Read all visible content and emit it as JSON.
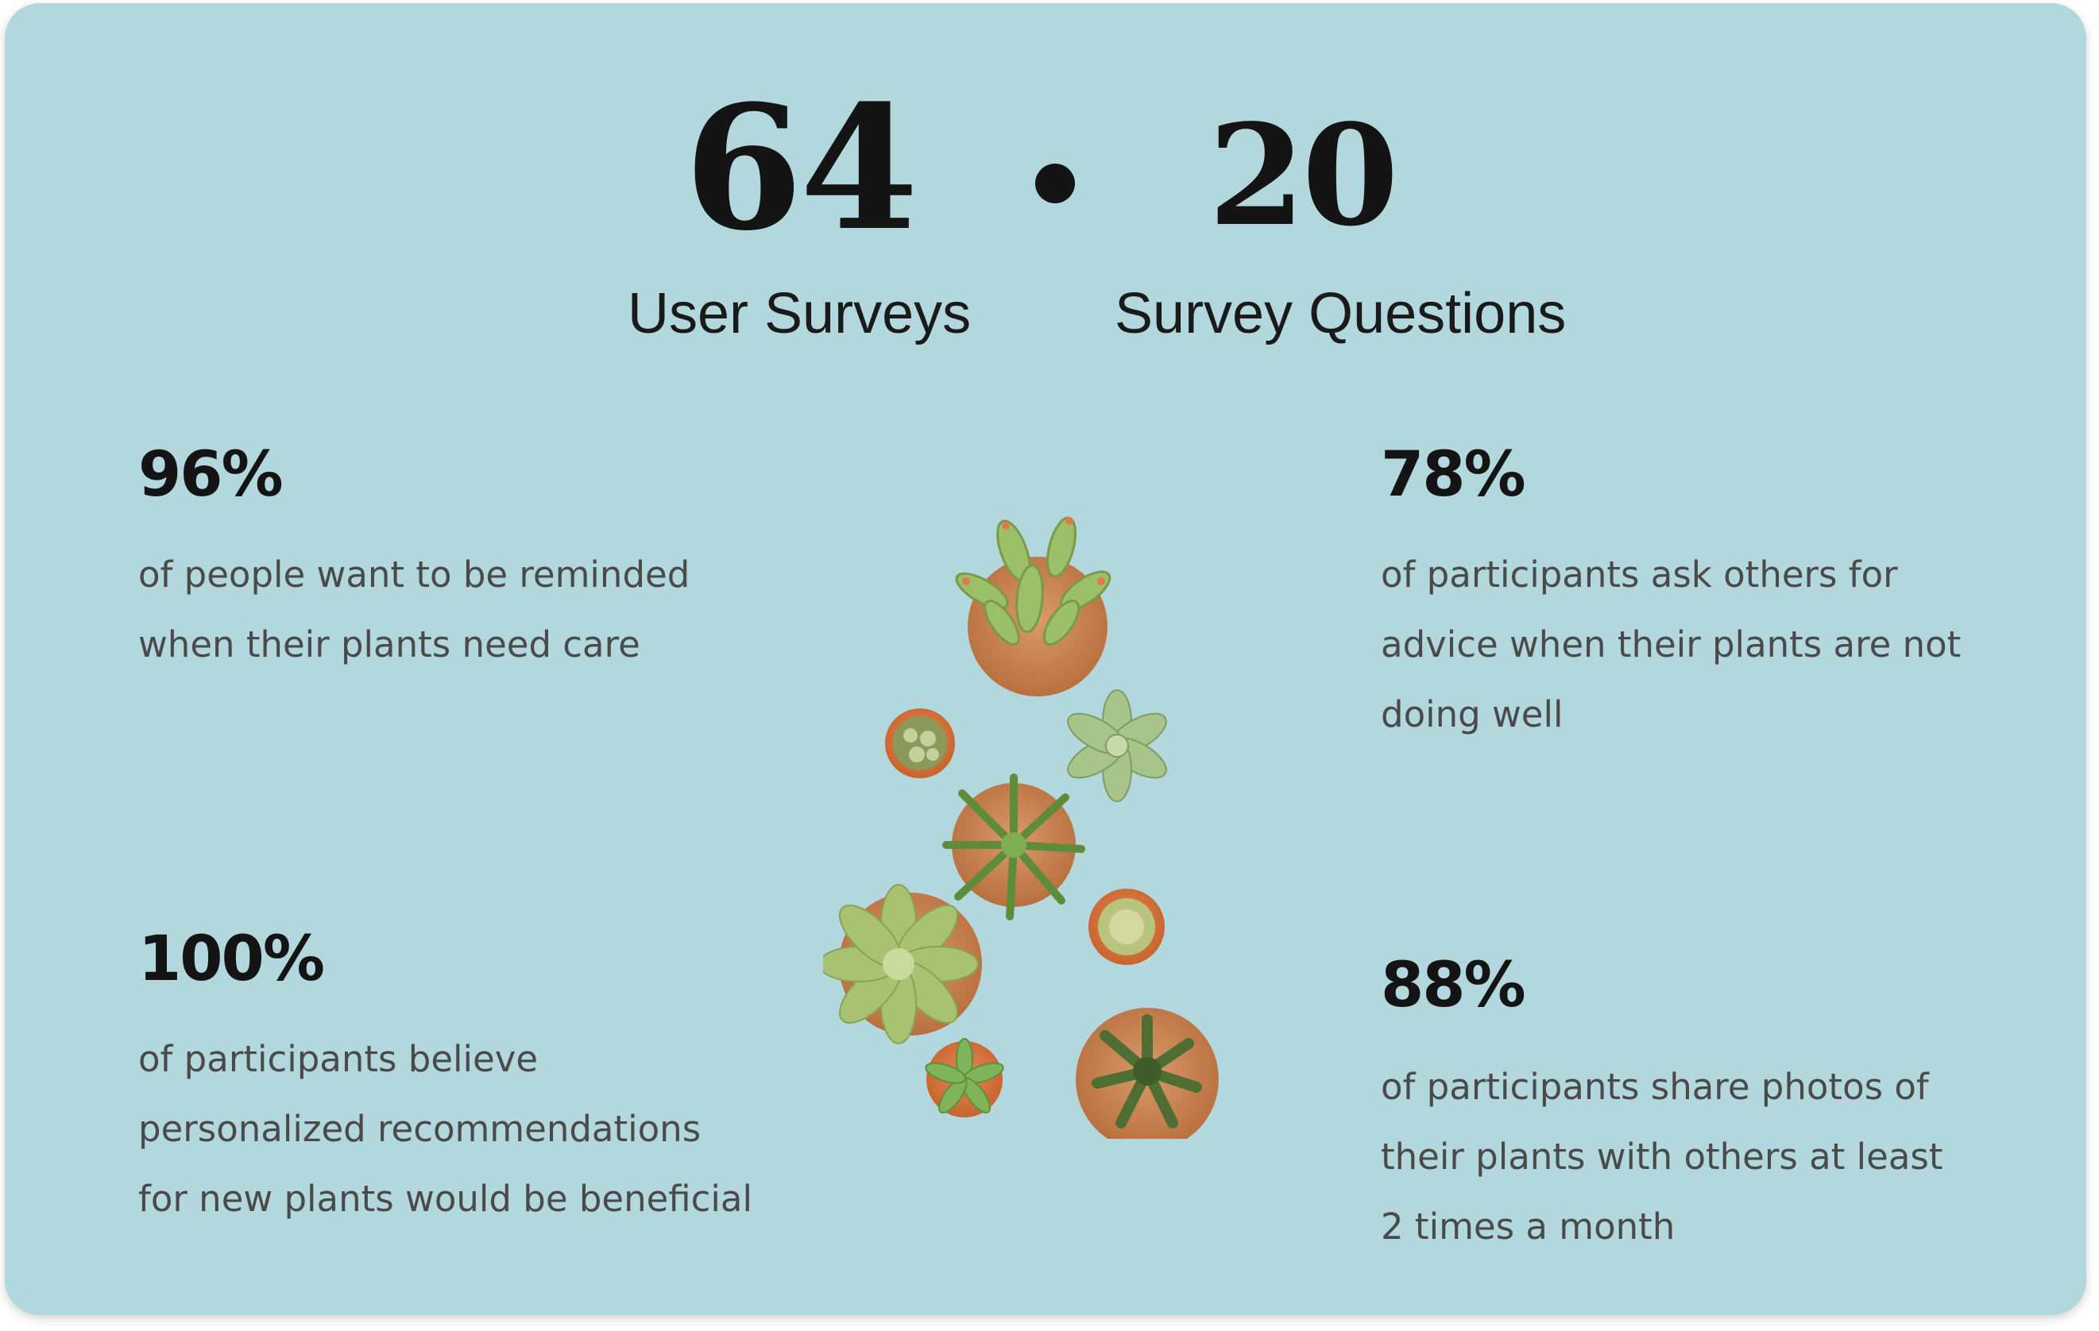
{
  "header": {
    "surveys_count": "64",
    "surveys_label": "User Surveys",
    "questions_count": "20",
    "questions_label": "Survey Questions"
  },
  "stats": [
    {
      "percent": "96%",
      "text": "of people want to be reminded\nwhen their plants need care"
    },
    {
      "percent": "100%",
      "text": "of participants believe\npersonalized recommendations\nfor new plants would be beneficial"
    },
    {
      "percent": "78%",
      "text": "of participants ask others for\nadvice when their plants are not\ndoing well"
    },
    {
      "percent": "88%",
      "text": "of participants share photos of\ntheir plants with others at least\n2 times a month"
    }
  ],
  "colors": {
    "card_background": "#b2d8de",
    "headline_text": "#141414",
    "body_text": "#4a4a4a"
  },
  "illustration": "potted-succulents-illustration"
}
